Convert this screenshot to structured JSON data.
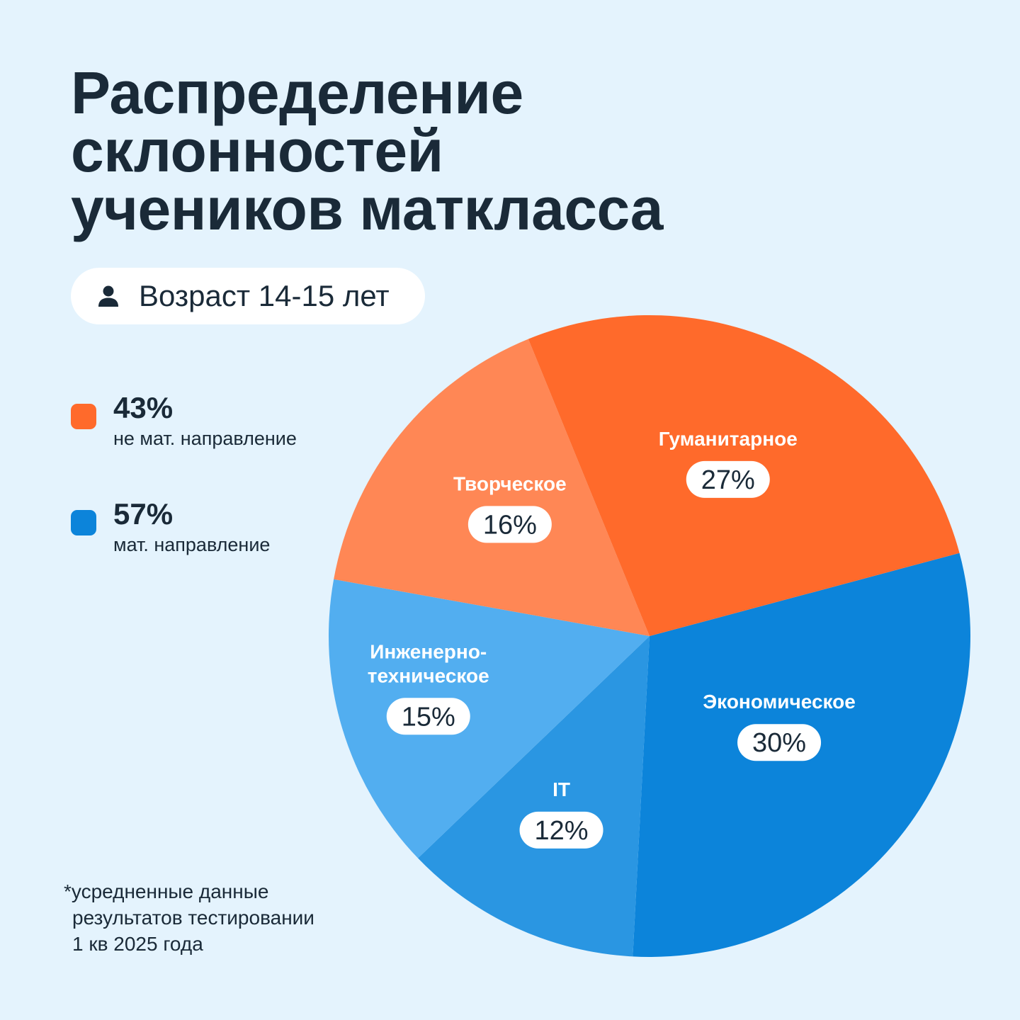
{
  "title": {
    "line1": "Распределение",
    "line2": "склонностей",
    "line3": "учеников маткласса"
  },
  "age_badge": {
    "icon": "person-icon",
    "text": "Возраст 14-15 лет"
  },
  "legend": [
    {
      "value": "43%",
      "label": "не мат. направление",
      "color": "#ff6a2b"
    },
    {
      "value": "57%",
      "label": "мат. направление",
      "color": "#0c84da"
    }
  ],
  "chart_data": {
    "type": "pie",
    "title": "Распределение склонностей учеников маткласса",
    "slices": [
      {
        "label": [
          "Экономическое"
        ],
        "value": 30,
        "display": "30%",
        "color": "#0c84da"
      },
      {
        "label": [
          "IT"
        ],
        "value": 12,
        "display": "12%",
        "color": "#2a96e2"
      },
      {
        "label": [
          "Инженерно-",
          "техническое"
        ],
        "value": 15,
        "display": "15%",
        "color": "#52aef0"
      },
      {
        "label": [
          "Творческое"
        ],
        "value": 16,
        "display": "16%",
        "color": "#ff8755"
      },
      {
        "label": [
          "Гуманитарное"
        ],
        "value": 27,
        "display": "27%",
        "color": "#ff6a2b"
      }
    ],
    "start_angle_deg": -15,
    "direction": "clockwise"
  },
  "footnote": {
    "line1": "*усредненные данные",
    "line2": "результатов тестировании",
    "line3": "1 кв 2025 года"
  }
}
